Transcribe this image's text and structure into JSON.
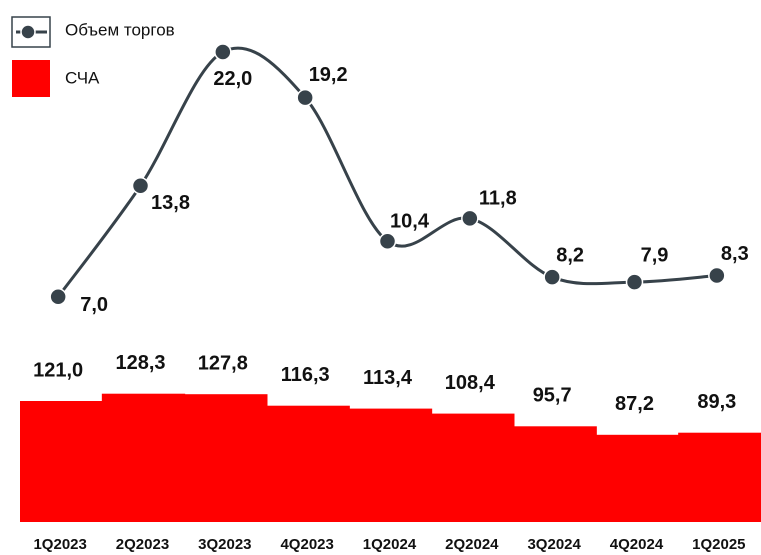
{
  "chart_data": {
    "type": "bar",
    "categories": [
      "1Q2023",
      "2Q2023",
      "3Q2023",
      "4Q2023",
      "1Q2024",
      "2Q2024",
      "3Q2024",
      "4Q2024",
      "1Q2025"
    ],
    "series": [
      {
        "name": "Объем торгов",
        "type": "line",
        "axis": "y2",
        "color": "#37424a",
        "values": [
          7.0,
          13.8,
          22.0,
          19.2,
          10.4,
          11.8,
          8.2,
          7.9,
          8.3
        ],
        "value_labels": [
          "7,0",
          "13,8",
          "22,0",
          "19,2",
          "10,4",
          "11,8",
          "8,2",
          "7,9",
          "8,3"
        ]
      },
      {
        "name": "СЧА",
        "type": "bar",
        "color": "#ff0000",
        "values": [
          121.0,
          128.3,
          127.8,
          116.3,
          113.4,
          108.4,
          95.7,
          87.2,
          89.3
        ],
        "value_labels": [
          "121,0",
          "128,3",
          "127,8",
          "116,3",
          "113,4",
          "108,4",
          "95,7",
          "87,2",
          "89,3"
        ]
      }
    ],
    "ylim": [
      0,
      130
    ],
    "y2lim": [
      0,
      25
    ]
  }
}
